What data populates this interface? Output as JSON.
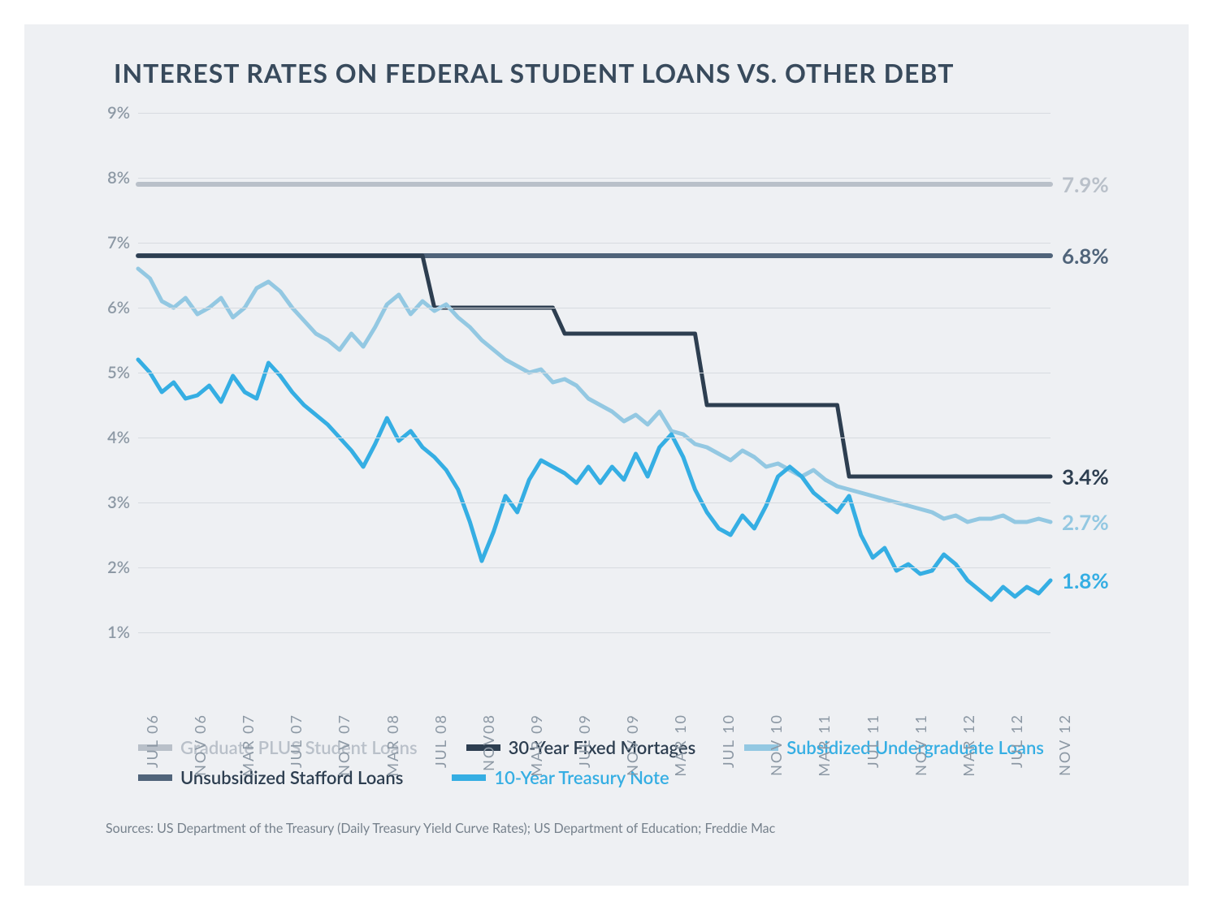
{
  "chart": {
    "type": "line",
    "title": "INTEREST RATES ON FEDERAL STUDENT LOANS VS. OTHER DEBT",
    "background_color": "#eef0f3",
    "grid_color": "#d7dbe0",
    "title_color": "#384a5c",
    "axis_label_color": "#8c98a4",
    "ylim": [
      1,
      9
    ],
    "yticks": [
      1,
      2,
      3,
      4,
      5,
      6,
      7,
      8,
      9
    ],
    "ytick_labels": [
      "1%",
      "2%",
      "3%",
      "4%",
      "5%",
      "6%",
      "7%",
      "8%",
      "9%"
    ],
    "x_labels": [
      "JUL 06",
      "NOV 06",
      "MAR 07",
      "JUL 07",
      "NOV 07",
      "MAR 08",
      "JUL 08",
      "NOV08",
      "MAR 09",
      "JUL 09",
      "NOV 09",
      "MAR 10",
      "JUL 10",
      "NOV 10",
      "MAR 11",
      "JUL 11",
      "NOV 11",
      "MAR 12",
      "JUL 12",
      "NOV 12"
    ],
    "x_count": 78,
    "series": [
      {
        "name": "Graduate PLUS Student Loans",
        "color": "#b9c0c9",
        "stroke_width": 6,
        "end_label": "7.9%",
        "legend_order": 0,
        "data": [
          7.9,
          7.9,
          7.9,
          7.9,
          7.9,
          7.9,
          7.9,
          7.9,
          7.9,
          7.9,
          7.9,
          7.9,
          7.9,
          7.9,
          7.9,
          7.9,
          7.9,
          7.9,
          7.9,
          7.9,
          7.9,
          7.9,
          7.9,
          7.9,
          7.9,
          7.9,
          7.9,
          7.9,
          7.9,
          7.9,
          7.9,
          7.9,
          7.9,
          7.9,
          7.9,
          7.9,
          7.9,
          7.9,
          7.9,
          7.9,
          7.9,
          7.9,
          7.9,
          7.9,
          7.9,
          7.9,
          7.9,
          7.9,
          7.9,
          7.9,
          7.9,
          7.9,
          7.9,
          7.9,
          7.9,
          7.9,
          7.9,
          7.9,
          7.9,
          7.9,
          7.9,
          7.9,
          7.9,
          7.9,
          7.9,
          7.9,
          7.9,
          7.9,
          7.9,
          7.9,
          7.9,
          7.9,
          7.9,
          7.9,
          7.9,
          7.9,
          7.9,
          7.9
        ]
      },
      {
        "name": "Unsubsidized Stafford Loans",
        "color": "#50647a",
        "stroke_width": 6,
        "end_label": "6.8%",
        "legend_order": 3,
        "data": [
          6.8,
          6.8,
          6.8,
          6.8,
          6.8,
          6.8,
          6.8,
          6.8,
          6.8,
          6.8,
          6.8,
          6.8,
          6.8,
          6.8,
          6.8,
          6.8,
          6.8,
          6.8,
          6.8,
          6.8,
          6.8,
          6.8,
          6.8,
          6.8,
          6.8,
          6.8,
          6.8,
          6.8,
          6.8,
          6.8,
          6.8,
          6.8,
          6.8,
          6.8,
          6.8,
          6.8,
          6.8,
          6.8,
          6.8,
          6.8,
          6.8,
          6.8,
          6.8,
          6.8,
          6.8,
          6.8,
          6.8,
          6.8,
          6.8,
          6.8,
          6.8,
          6.8,
          6.8,
          6.8,
          6.8,
          6.8,
          6.8,
          6.8,
          6.8,
          6.8,
          6.8,
          6.8,
          6.8,
          6.8,
          6.8,
          6.8,
          6.8,
          6.8,
          6.8,
          6.8,
          6.8,
          6.8,
          6.8,
          6.8,
          6.8,
          6.8,
          6.8,
          6.8
        ]
      },
      {
        "name": "30-Year Fixed Mortages",
        "color": "#2d3e50",
        "stroke_width": 5,
        "end_label": "3.4%",
        "legend_order": 1,
        "data": [
          6.8,
          6.8,
          6.8,
          6.8,
          6.8,
          6.8,
          6.8,
          6.8,
          6.8,
          6.8,
          6.8,
          6.8,
          6.8,
          6.8,
          6.8,
          6.8,
          6.8,
          6.8,
          6.8,
          6.8,
          6.8,
          6.8,
          6.8,
          6.8,
          6.8,
          6.0,
          6.0,
          6.0,
          6.0,
          6.0,
          6.0,
          6.0,
          6.0,
          6.0,
          6.0,
          6.0,
          5.6,
          5.6,
          5.6,
          5.6,
          5.6,
          5.6,
          5.6,
          5.6,
          5.6,
          5.6,
          5.6,
          5.6,
          4.5,
          4.5,
          4.5,
          4.5,
          4.5,
          4.5,
          4.5,
          4.5,
          4.5,
          4.5,
          4.5,
          4.5,
          3.4,
          3.4,
          3.4,
          3.4,
          3.4,
          3.4,
          3.4,
          3.4,
          3.4,
          3.4,
          3.4,
          3.4,
          3.4,
          3.4,
          3.4,
          3.4,
          3.4,
          3.4
        ]
      },
      {
        "name": "Subsidized Undergraduate Loans",
        "color": "#93c8e2",
        "stroke_width": 5,
        "end_label": "2.7%",
        "legend_order": 2,
        "data": [
          6.6,
          6.45,
          6.1,
          6.0,
          6.15,
          5.9,
          6.0,
          6.15,
          5.85,
          6.0,
          6.3,
          6.4,
          6.25,
          6.0,
          5.8,
          5.6,
          5.5,
          5.35,
          5.6,
          5.4,
          5.7,
          6.05,
          6.2,
          5.9,
          6.1,
          5.95,
          6.05,
          5.85,
          5.7,
          5.5,
          5.35,
          5.2,
          5.1,
          5.0,
          5.05,
          4.85,
          4.9,
          4.8,
          4.6,
          4.5,
          4.4,
          4.25,
          4.35,
          4.2,
          4.4,
          4.1,
          4.05,
          3.9,
          3.85,
          3.75,
          3.65,
          3.8,
          3.7,
          3.55,
          3.6,
          3.5,
          3.4,
          3.5,
          3.35,
          3.25,
          3.2,
          3.15,
          3.1,
          3.05,
          3.0,
          2.95,
          2.9,
          2.85,
          2.75,
          2.8,
          2.7,
          2.75,
          2.75,
          2.8,
          2.7,
          2.7,
          2.75,
          2.7
        ]
      },
      {
        "name": "10-Year Treasury Note",
        "color": "#35aee3",
        "stroke_width": 5,
        "end_label": "1.8%",
        "legend_order": 4,
        "data": [
          5.2,
          5.0,
          4.7,
          4.85,
          4.6,
          4.65,
          4.8,
          4.55,
          4.95,
          4.7,
          4.6,
          5.15,
          4.95,
          4.7,
          4.5,
          4.35,
          4.2,
          4.0,
          3.8,
          3.55,
          3.9,
          4.3,
          3.95,
          4.1,
          3.85,
          3.7,
          3.5,
          3.2,
          2.7,
          2.1,
          2.55,
          3.1,
          2.85,
          3.35,
          3.65,
          3.55,
          3.45,
          3.3,
          3.55,
          3.3,
          3.55,
          3.35,
          3.75,
          3.4,
          3.85,
          4.05,
          3.7,
          3.2,
          2.85,
          2.6,
          2.5,
          2.8,
          2.6,
          2.95,
          3.4,
          3.55,
          3.4,
          3.15,
          3.0,
          2.85,
          3.1,
          2.5,
          2.15,
          2.3,
          1.95,
          2.05,
          1.9,
          1.95,
          2.2,
          2.05,
          1.8,
          1.65,
          1.5,
          1.7,
          1.55,
          1.7,
          1.6,
          1.8
        ]
      }
    ],
    "legend": [
      {
        "label": "Graduate PLUS Student Loans",
        "color": "#b9c0c9",
        "text_color": "#b9c0c9"
      },
      {
        "label": "30-Year Fixed Mortages",
        "color": "#2d3e50",
        "text_color": "#2d3e50"
      },
      {
        "label": "Subsidized Undergraduate Loans",
        "color": "#93c8e2",
        "text_color": "#35aee3"
      },
      {
        "label": "Unsubsidized Stafford Loans",
        "color": "#50647a",
        "text_color": "#2d3e50"
      },
      {
        "label": "10-Year Treasury Note",
        "color": "#35aee3",
        "text_color": "#35aee3"
      }
    ],
    "sources": "Sources: US Department of the Treasury (Daily Treasury Yield Curve Rates); US Department of Education; Freddie Mac"
  }
}
